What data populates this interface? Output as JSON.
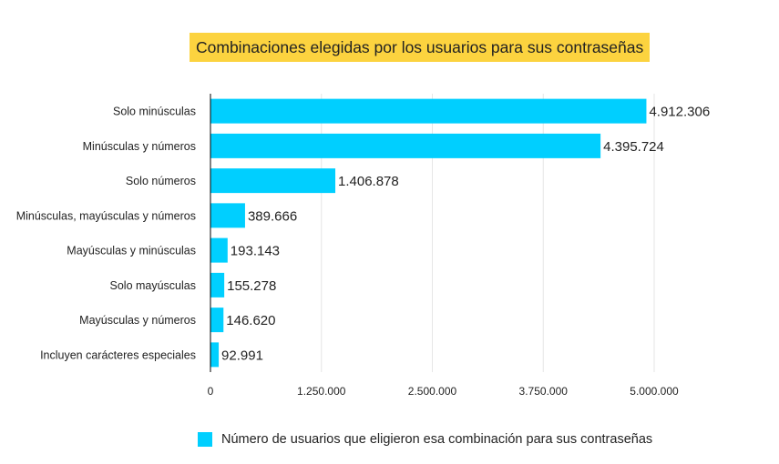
{
  "chart_data": {
    "type": "bar",
    "orientation": "horizontal",
    "title": "Combinaciones elegidas por los usuarios para sus contraseñas",
    "categories": [
      "Solo minúsculas",
      "Minúsculas y números",
      "Solo números",
      "Minúsculas, mayúsculas y números",
      "Mayúsculas y minúsculas",
      "Solo mayúsculas",
      "Mayúsculas y números",
      "Incluyen carácteres especiales"
    ],
    "values": [
      4912306,
      4395724,
      1406878,
      389666,
      193143,
      155278,
      146620,
      92991
    ],
    "value_labels": [
      "4.912.306",
      "4.395.724",
      "1.406.878",
      "389.666",
      "193.143",
      "155.278",
      "146.620",
      "92.991"
    ],
    "xlim": [
      0,
      5000000
    ],
    "x_ticks": [
      0,
      1250000,
      2500000,
      3750000,
      5000000
    ],
    "x_tick_labels": [
      "0",
      "1.250.000",
      "2.500.000",
      "3.750.000",
      "5.000.000"
    ],
    "grid": true,
    "legend": {
      "label": "Número de usuarios que eligieron esa combinación para sus contraseñas",
      "position": "bottom"
    },
    "colors": {
      "bar": "#00cfff",
      "title_bg": "#fcd33f",
      "grid": "#e6e6e6",
      "axis": "#000000"
    }
  }
}
